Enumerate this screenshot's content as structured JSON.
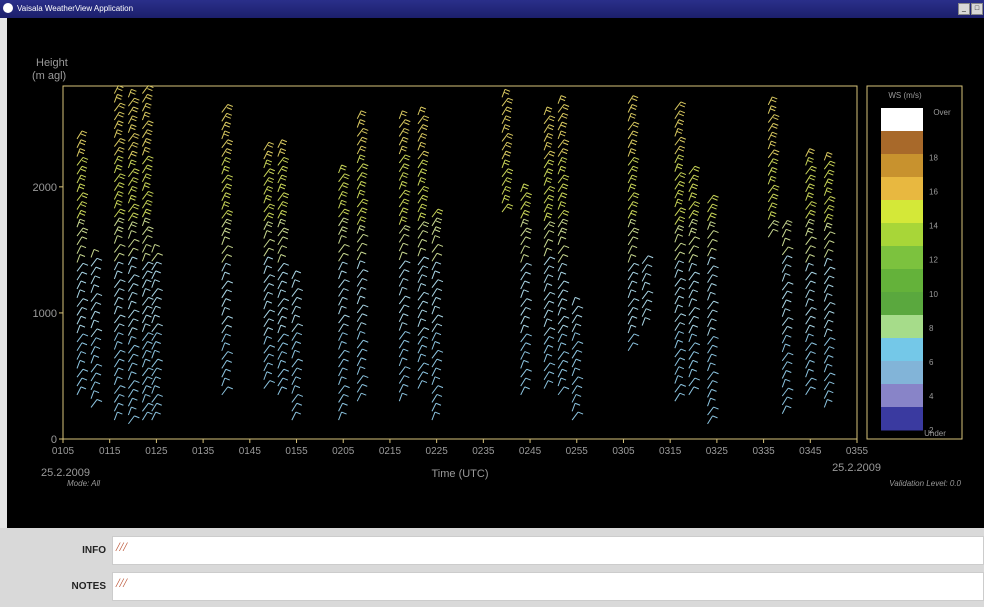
{
  "window": {
    "title": "Vaisala WeatherView Application"
  },
  "colors": {
    "frame": "#d8c37a",
    "background": "#000000",
    "dim_text": "#9a9a9a",
    "note": "#b84c2c"
  },
  "chart_data": {
    "type": "wind-barb profile",
    "ylabel_line1": "Height",
    "ylabel_line2": "(m agl)",
    "xlabel": "Time (UTC)",
    "ylim": [
      0,
      2800
    ],
    "y_ticks": [
      "0",
      "1000",
      "2000"
    ],
    "y_tick_values": [
      0,
      1000,
      2000
    ],
    "x_ticks": [
      "0105",
      "0115",
      "0125",
      "0135",
      "0145",
      "0155",
      "0205",
      "0215",
      "0225",
      "0235",
      "0245",
      "0255",
      "0305",
      "0315",
      "0325",
      "0335",
      "0345",
      "0355"
    ],
    "date_left": "25.2.2009",
    "date_right": "25.2.2009",
    "mode": "Mode:  All",
    "validation": "Validation Level:  0.0",
    "legend": {
      "title": "WS (m/s)",
      "over": "Over",
      "under": "Under",
      "labels": [
        "18",
        "16",
        "14",
        "12",
        "10",
        "8",
        "6",
        "4",
        "2"
      ],
      "bands": [
        "#ffffff",
        "#a8692a",
        "#c8922e",
        "#e8b840",
        "#d4e838",
        "#a8d638",
        "#7cc23e",
        "#64b23a",
        "#5aa83e",
        "#a6dc8a",
        "#74c8e8",
        "#82b4d8",
        "#8884c8",
        "#3a3aa0"
      ]
    },
    "series_columns": [
      {
        "time": "0108",
        "bottom": 350,
        "top": 2400
      },
      {
        "time": "0111",
        "bottom": 250,
        "top": 1500
      },
      {
        "time": "0116",
        "bottom": 150,
        "top": 2750
      },
      {
        "time": "0119",
        "bottom": 120,
        "top": 2750
      },
      {
        "time": "0122",
        "bottom": 150,
        "top": 2800
      },
      {
        "time": "0124",
        "bottom": 150,
        "top": 1500
      },
      {
        "time": "0139",
        "bottom": 350,
        "top": 2600
      },
      {
        "time": "0148",
        "bottom": 400,
        "top": 2350
      },
      {
        "time": "0151",
        "bottom": 350,
        "top": 2350
      },
      {
        "time": "0154",
        "bottom": 150,
        "top": 1300
      },
      {
        "time": "0204",
        "bottom": 150,
        "top": 2150
      },
      {
        "time": "0208",
        "bottom": 300,
        "top": 2550
      },
      {
        "time": "0217",
        "bottom": 300,
        "top": 2600
      },
      {
        "time": "0221",
        "bottom": 400,
        "top": 2600
      },
      {
        "time": "0224",
        "bottom": 150,
        "top": 1800
      },
      {
        "time": "0239",
        "bottom": 1800,
        "top": 2750
      },
      {
        "time": "0243",
        "bottom": 350,
        "top": 2000
      },
      {
        "time": "0248",
        "bottom": 400,
        "top": 2600
      },
      {
        "time": "0251",
        "bottom": 350,
        "top": 2700
      },
      {
        "time": "0254",
        "bottom": 150,
        "top": 1100
      },
      {
        "time": "0306",
        "bottom": 700,
        "top": 2700
      },
      {
        "time": "0309",
        "bottom": 900,
        "top": 1400
      },
      {
        "time": "0316",
        "bottom": 300,
        "top": 2650
      },
      {
        "time": "0319",
        "bottom": 350,
        "top": 2150
      },
      {
        "time": "0323",
        "bottom": 120,
        "top": 1900
      },
      {
        "time": "0336",
        "bottom": 1600,
        "top": 2700
      },
      {
        "time": "0339",
        "bottom": 200,
        "top": 1700
      },
      {
        "time": "0344",
        "bottom": 350,
        "top": 2250
      },
      {
        "time": "0348",
        "bottom": 250,
        "top": 2250
      }
    ]
  },
  "bottom": {
    "info_label": "INFO",
    "info_value": "///",
    "notes_label": "NOTES",
    "notes_value": "///"
  }
}
